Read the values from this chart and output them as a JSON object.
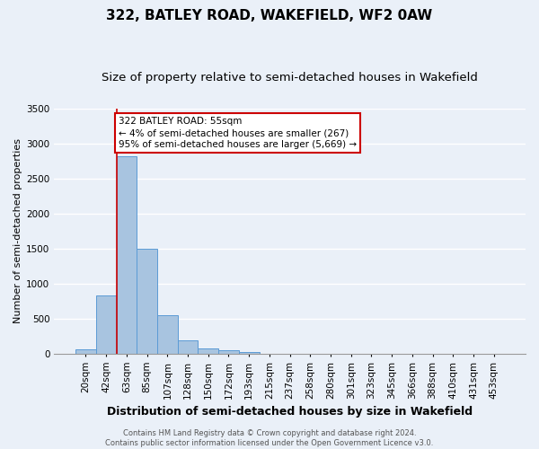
{
  "title": "322, BATLEY ROAD, WAKEFIELD, WF2 0AW",
  "subtitle": "Size of property relative to semi-detached houses in Wakefield",
  "xlabel": "Distribution of semi-detached houses by size in Wakefield",
  "ylabel_full": "Number of semi-detached properties",
  "categories": [
    "20sqm",
    "42sqm",
    "63sqm",
    "85sqm",
    "107sqm",
    "128sqm",
    "150sqm",
    "172sqm",
    "193sqm",
    "215sqm",
    "237sqm",
    "258sqm",
    "280sqm",
    "301sqm",
    "323sqm",
    "345sqm",
    "366sqm",
    "388sqm",
    "410sqm",
    "431sqm",
    "453sqm"
  ],
  "values": [
    65,
    835,
    2810,
    1500,
    545,
    185,
    75,
    45,
    30,
    0,
    0,
    0,
    0,
    0,
    0,
    0,
    0,
    0,
    0,
    0,
    0
  ],
  "bar_color": "#a8c4e0",
  "bar_edge_color": "#5b9bd5",
  "vline_x_index": 1,
  "vline_color": "#cc0000",
  "ylim": [
    0,
    3500
  ],
  "yticks": [
    0,
    500,
    1000,
    1500,
    2000,
    2500,
    3000,
    3500
  ],
  "annotation_text": "322 BATLEY ROAD: 55sqm\n← 4% of semi-detached houses are smaller (267)\n95% of semi-detached houses are larger (5,669) →",
  "annotation_box_color": "#ffffff",
  "annotation_box_edge": "#cc0000",
  "footer": "Contains HM Land Registry data © Crown copyright and database right 2024.\nContains public sector information licensed under the Open Government Licence v3.0.",
  "background_color": "#eaf0f8",
  "plot_bg_color": "#eaf0f8",
  "grid_color": "#ffffff",
  "title_fontsize": 11,
  "subtitle_fontsize": 9.5,
  "tick_fontsize": 7.5,
  "ylabel_fontsize": 8,
  "xlabel_fontsize": 9,
  "footer_fontsize": 6,
  "annotation_fontsize": 7.5
}
